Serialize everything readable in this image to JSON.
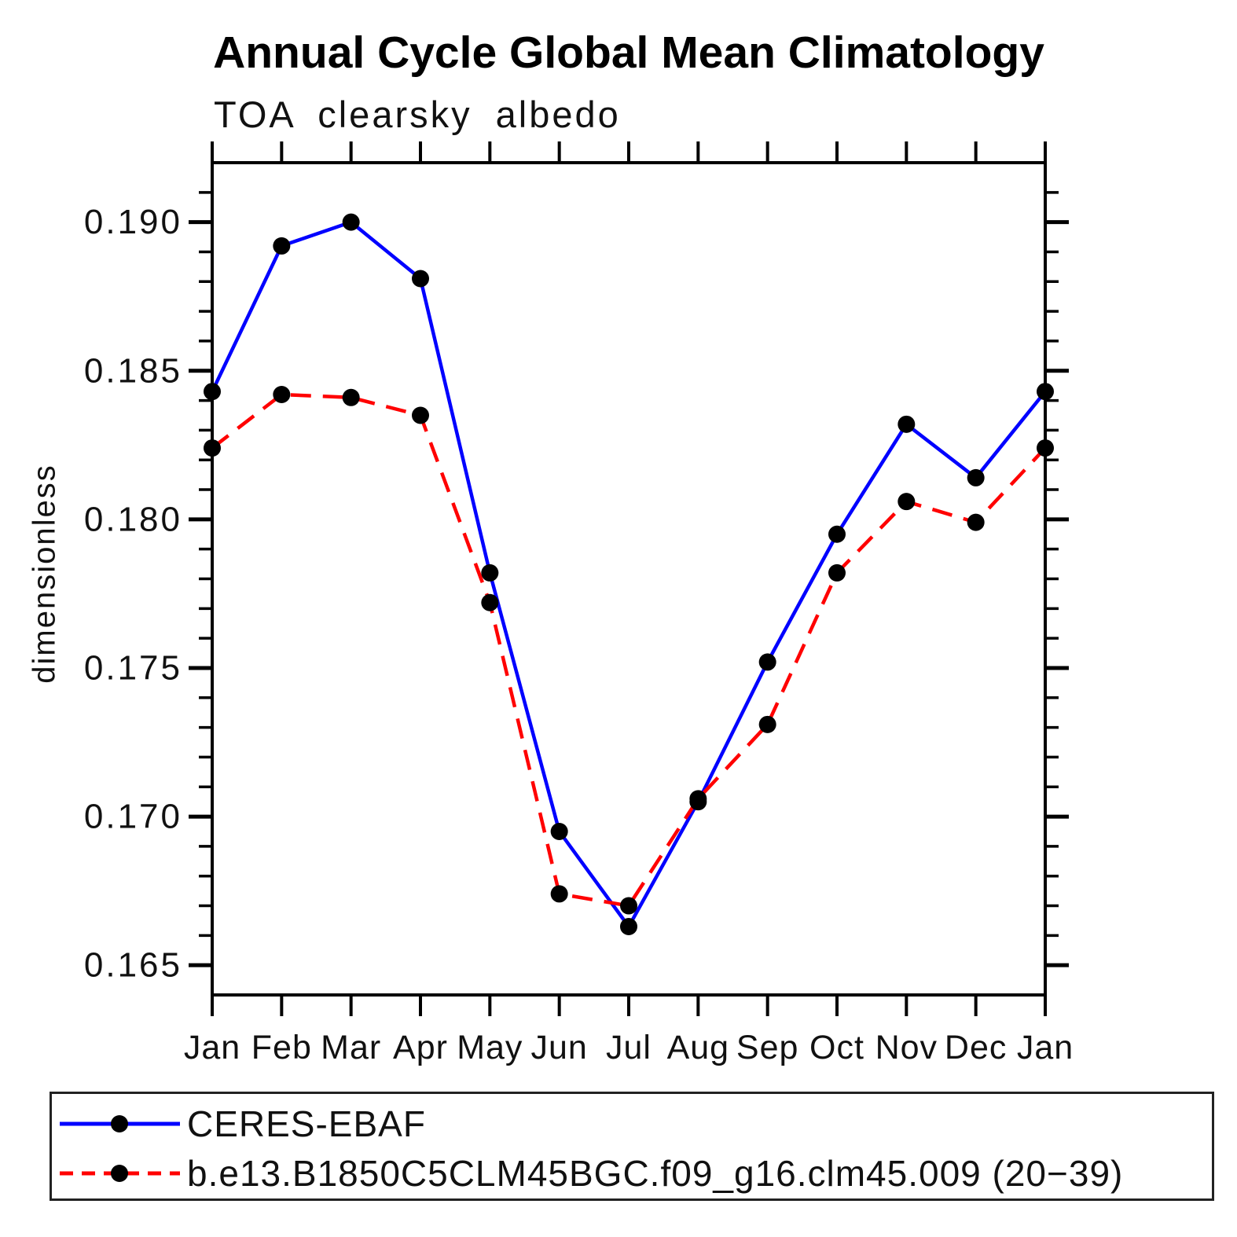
{
  "chart_data": {
    "type": "line",
    "title": "Annual Cycle Global Mean Climatology",
    "subtitle": "TOA clearsky albedo",
    "ylabel": "dimensionless",
    "xlabel": "",
    "categories": [
      "Jan",
      "Feb",
      "Mar",
      "Apr",
      "May",
      "Jun",
      "Jul",
      "Aug",
      "Sep",
      "Oct",
      "Nov",
      "Dec",
      "Jan"
    ],
    "ylim": [
      0.164,
      0.192
    ],
    "ytick_major": [
      0.165,
      0.17,
      0.175,
      0.18,
      0.185,
      0.19
    ],
    "ytick_major_labels": [
      "0.165",
      "0.170",
      "0.175",
      "0.180",
      "0.185",
      "0.190"
    ],
    "ytick_minor_step": 0.001,
    "grid": false,
    "legend_position": "bottom",
    "marker_color": "#000000",
    "axis_color": "#000000",
    "series": [
      {
        "name": "CERES-EBAF",
        "color": "#0000ff",
        "line_style": "solid",
        "values": [
          0.1843,
          0.1892,
          0.19,
          0.1881,
          0.1782,
          0.1695,
          0.1663,
          0.1705,
          0.1752,
          0.1795,
          0.1832,
          0.1814,
          0.1843
        ]
      },
      {
        "name": "b.e13.B1850C5CLM45BGC.f09_g16.clm45.009 (20−39)",
        "color": "#ff0000",
        "line_style": "dashed",
        "values": [
          0.1824,
          0.1842,
          0.1841,
          0.1835,
          0.1772,
          0.1674,
          0.167,
          0.1706,
          0.1731,
          0.1782,
          0.1806,
          0.1799,
          0.1824
        ]
      }
    ]
  }
}
